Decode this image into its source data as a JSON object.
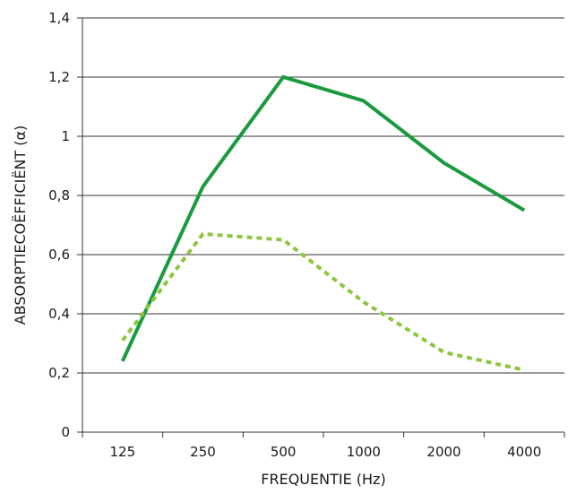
{
  "chart_data": {
    "type": "line",
    "title": "",
    "xlabel": "FREQUENTIE (Hz)",
    "ylabel": "ABSORPTIECOËFFICIËNT (α)",
    "categories": [
      "125",
      "250",
      "500",
      "1000",
      "2000",
      "4000"
    ],
    "ylim": [
      0,
      1.4
    ],
    "yticks": [
      "0",
      "0,2",
      "0,4",
      "0,6",
      "0,8",
      "1",
      "1,2",
      "1,4"
    ],
    "grid": true,
    "legend": "none",
    "series": [
      {
        "values": [
          0.24,
          0.83,
          1.2,
          1.12,
          0.91,
          0.75
        ],
        "color": "#1a9a3e",
        "style": "solid"
      },
      {
        "values": [
          0.31,
          0.67,
          0.65,
          0.44,
          0.27,
          0.21
        ],
        "color": "#8cc63f",
        "style": "dotted"
      }
    ]
  }
}
